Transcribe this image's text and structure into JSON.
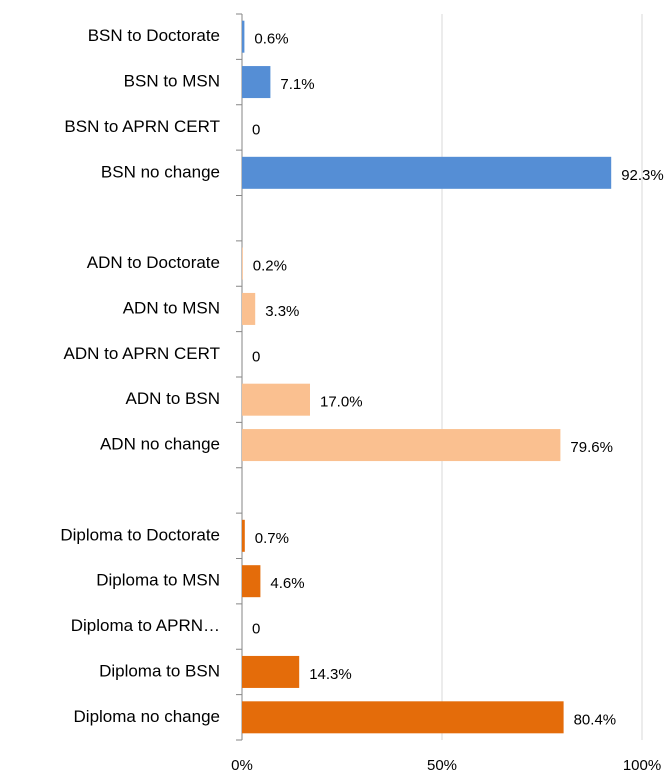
{
  "chart_data": {
    "type": "barh",
    "categories": [
      "BSN to Doctorate",
      "BSN to MSN",
      "BSN to APRN CERT",
      "BSN no change",
      null,
      "ADN to Doctorate",
      "ADN to MSN",
      "ADN to APRN CERT",
      "ADN to BSN",
      "ADN no change",
      null,
      "Diploma to Doctorate",
      "Diploma to MSN",
      "Diploma to APRN…",
      "Diploma to BSN",
      "Diploma no change"
    ],
    "values": [
      0.6,
      7.1,
      0,
      92.3,
      null,
      0.2,
      3.3,
      0,
      17.0,
      79.6,
      null,
      0.7,
      4.6,
      0,
      14.3,
      80.4
    ],
    "value_labels": [
      "0.6%",
      "7.1%",
      "0",
      "92.3%",
      null,
      "0.2%",
      "3.3%",
      "0",
      "17.0%",
      "79.6%",
      null,
      "0.7%",
      "4.6%",
      "0",
      "14.3%",
      "80.4%"
    ],
    "colors": [
      "#558ed5",
      "#558ed5",
      "#558ed5",
      "#558ed5",
      null,
      "#fac090",
      "#fac090",
      "#fac090",
      "#fac090",
      "#fac090",
      null,
      "#e46c0a",
      "#e46c0a",
      "#e46c0a",
      "#e46c0a",
      "#e46c0a"
    ],
    "xlim": [
      0,
      100
    ],
    "xticks": [
      {
        "value": 0,
        "label": "0%"
      },
      {
        "value": 50,
        "label": "50%"
      },
      {
        "value": 100,
        "label": "100%"
      }
    ],
    "grid": true
  }
}
